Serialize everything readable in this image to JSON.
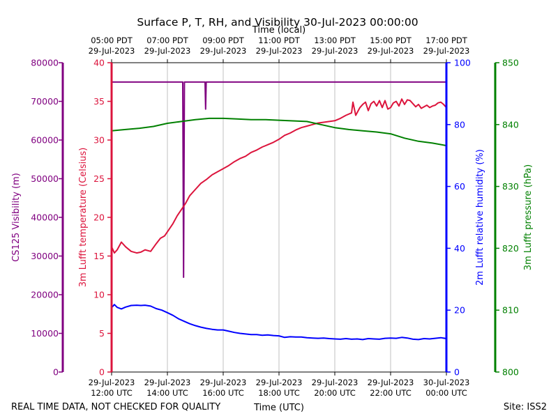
{
  "chart_data": {
    "type": "line",
    "title": "Surface P, T, RH, and Visibility 30-Jul-2023 00:00:00",
    "top_axis_label": "Time (local)",
    "bottom_axis_label": "Time (UTC)",
    "footer_left": "REAL TIME DATA, NOT CHECKED FOR QUALITY",
    "footer_right": "Site: ISS2",
    "x_range_hours_utc": [
      12,
      24
    ],
    "x_ticks_utc": [
      {
        "h": 12,
        "l1": "29-Jul-2023",
        "l2": "12:00 UTC"
      },
      {
        "h": 14,
        "l1": "29-Jul-2023",
        "l2": "14:00 UTC"
      },
      {
        "h": 16,
        "l1": "29-Jul-2023",
        "l2": "16:00 UTC"
      },
      {
        "h": 18,
        "l1": "29-Jul-2023",
        "l2": "18:00 UTC"
      },
      {
        "h": 20,
        "l1": "29-Jul-2023",
        "l2": "20:00 UTC"
      },
      {
        "h": 22,
        "l1": "29-Jul-2023",
        "l2": "22:00 UTC"
      },
      {
        "h": 24,
        "l1": "30-Jul-2023",
        "l2": "00:00 UTC"
      }
    ],
    "x_ticks_local": [
      {
        "h": 12,
        "l1": "05:00 PDT",
        "l2": "29-Jul-2023"
      },
      {
        "h": 14,
        "l1": "07:00 PDT",
        "l2": "29-Jul-2023"
      },
      {
        "h": 16,
        "l1": "09:00 PDT",
        "l2": "29-Jul-2023"
      },
      {
        "h": 18,
        "l1": "11:00 PDT",
        "l2": "29-Jul-2023"
      },
      {
        "h": 20,
        "l1": "13:00 PDT",
        "l2": "29-Jul-2023"
      },
      {
        "h": 22,
        "l1": "15:00 PDT",
        "l2": "29-Jul-2023"
      },
      {
        "h": 24,
        "l1": "17:00 PDT",
        "l2": "29-Jul-2023"
      }
    ],
    "grid": "vertical",
    "axes": [
      {
        "id": "vis",
        "label": "CS125 Visibility (m)",
        "color": "#800080",
        "ylim": [
          0,
          80000
        ],
        "ticks": [
          0,
          10000,
          20000,
          30000,
          40000,
          50000,
          60000,
          70000,
          80000
        ]
      },
      {
        "id": "temp",
        "label": "3m Lufft temperature (Celsius)",
        "color": "#dc143c",
        "ylim": [
          0,
          40
        ],
        "ticks": [
          0,
          5,
          10,
          15,
          20,
          25,
          30,
          35,
          40
        ]
      },
      {
        "id": "rh",
        "label": "2m Lufft relative humidity (%)",
        "color": "#0000ff",
        "ylim": [
          0,
          100
        ],
        "ticks": [
          0,
          20,
          40,
          60,
          80,
          100
        ]
      },
      {
        "id": "pres",
        "label": "3m Lufft pressure (hPa)",
        "color": "#008000",
        "ylim": [
          800,
          850
        ],
        "ticks": [
          800,
          810,
          820,
          830,
          840,
          850
        ]
      }
    ],
    "series": [
      {
        "axis": "vis",
        "color": "#800080",
        "x": [
          12.0,
          14.55,
          14.58,
          14.61,
          15.35,
          15.37,
          15.39,
          24.0
        ],
        "y": [
          75000,
          75000,
          24500,
          75000,
          75000,
          68000,
          75000,
          75000
        ]
      },
      {
        "axis": "temp",
        "color": "#dc143c",
        "x": [
          12.0,
          12.1,
          12.2,
          12.35,
          12.5,
          12.7,
          12.9,
          13.05,
          13.2,
          13.4,
          13.6,
          13.75,
          13.9,
          14.05,
          14.2,
          14.35,
          14.5,
          14.65,
          14.8,
          15.0,
          15.2,
          15.4,
          15.6,
          15.8,
          16.0,
          16.2,
          16.4,
          16.6,
          16.8,
          17.0,
          17.2,
          17.4,
          17.6,
          17.8,
          18.0,
          18.2,
          18.4,
          18.6,
          18.8,
          19.0,
          19.2,
          19.4,
          19.6,
          19.8,
          20.0,
          20.2,
          20.4,
          20.6,
          20.65,
          20.75,
          20.9,
          21.0,
          21.1,
          21.2,
          21.3,
          21.4,
          21.5,
          21.6,
          21.7,
          21.8,
          21.9,
          22.0,
          22.1,
          22.2,
          22.3,
          22.4,
          22.5,
          22.6,
          22.7,
          22.8,
          22.9,
          23.0,
          23.1,
          23.2,
          23.3,
          23.4,
          23.5,
          23.6,
          23.7,
          23.8,
          23.9,
          24.0
        ],
        "y": [
          16.2,
          15.4,
          15.8,
          16.8,
          16.2,
          15.6,
          15.4,
          15.5,
          15.8,
          15.6,
          16.6,
          17.3,
          17.6,
          18.4,
          19.2,
          20.2,
          21.0,
          21.8,
          22.8,
          23.6,
          24.4,
          24.9,
          25.5,
          25.9,
          26.3,
          26.7,
          27.2,
          27.6,
          27.9,
          28.4,
          28.7,
          29.1,
          29.4,
          29.7,
          30.1,
          30.6,
          30.9,
          31.3,
          31.6,
          31.8,
          32.0,
          32.2,
          32.3,
          32.4,
          32.5,
          32.8,
          33.2,
          33.5,
          34.9,
          33.2,
          34.2,
          34.6,
          34.9,
          33.8,
          34.7,
          35.0,
          34.4,
          35.1,
          34.2,
          35.1,
          34.0,
          34.2,
          34.8,
          35.0,
          34.4,
          35.3,
          34.6,
          35.2,
          35.1,
          34.7,
          34.3,
          34.6,
          34.1,
          34.3,
          34.5,
          34.2,
          34.4,
          34.5,
          34.8,
          34.9,
          34.6,
          34.2
        ]
      },
      {
        "axis": "rh",
        "color": "#0000ff",
        "x": [
          12.0,
          12.1,
          12.2,
          12.35,
          12.5,
          12.7,
          12.9,
          13.05,
          13.2,
          13.4,
          13.6,
          13.8,
          14.0,
          14.2,
          14.4,
          14.6,
          14.8,
          15.0,
          15.2,
          15.4,
          15.6,
          15.8,
          16.0,
          16.2,
          16.4,
          16.6,
          16.8,
          17.0,
          17.2,
          17.4,
          17.6,
          17.8,
          18.0,
          18.2,
          18.4,
          18.6,
          18.8,
          19.0,
          19.2,
          19.4,
          19.6,
          19.8,
          20.0,
          20.2,
          20.4,
          20.6,
          20.8,
          21.0,
          21.2,
          21.4,
          21.6,
          21.8,
          22.0,
          22.2,
          22.4,
          22.6,
          22.8,
          23.0,
          23.2,
          23.4,
          23.6,
          23.8,
          24.0
        ],
        "y": [
          20.8,
          21.8,
          20.9,
          20.4,
          21.0,
          21.5,
          21.6,
          21.5,
          21.6,
          21.3,
          20.5,
          20.0,
          19.2,
          18.3,
          17.2,
          16.4,
          15.6,
          15.0,
          14.5,
          14.1,
          13.8,
          13.6,
          13.6,
          13.2,
          12.8,
          12.5,
          12.3,
          12.1,
          12.1,
          11.9,
          12.0,
          11.8,
          11.7,
          11.2,
          11.4,
          11.3,
          11.3,
          11.1,
          11.0,
          10.9,
          11.0,
          10.8,
          10.7,
          10.6,
          10.8,
          10.6,
          10.7,
          10.5,
          10.8,
          10.7,
          10.6,
          10.9,
          11.0,
          10.9,
          11.2,
          11.0,
          10.6,
          10.5,
          10.8,
          10.7,
          10.9,
          11.1,
          10.8
        ]
      },
      {
        "axis": "pres",
        "color": "#008000",
        "x": [
          12.0,
          12.5,
          13.0,
          13.5,
          14.0,
          14.5,
          15.0,
          15.5,
          16.0,
          16.5,
          17.0,
          17.5,
          18.0,
          18.5,
          19.0,
          19.5,
          20.0,
          20.5,
          21.0,
          21.5,
          22.0,
          22.5,
          23.0,
          23.5,
          24.0
        ],
        "y": [
          839.0,
          839.2,
          839.4,
          839.7,
          840.2,
          840.5,
          840.8,
          841.0,
          841.0,
          840.9,
          840.8,
          840.8,
          840.7,
          840.6,
          840.5,
          840.0,
          839.5,
          839.2,
          839.0,
          838.8,
          838.5,
          837.8,
          837.3,
          837.0,
          836.6
        ]
      }
    ]
  }
}
